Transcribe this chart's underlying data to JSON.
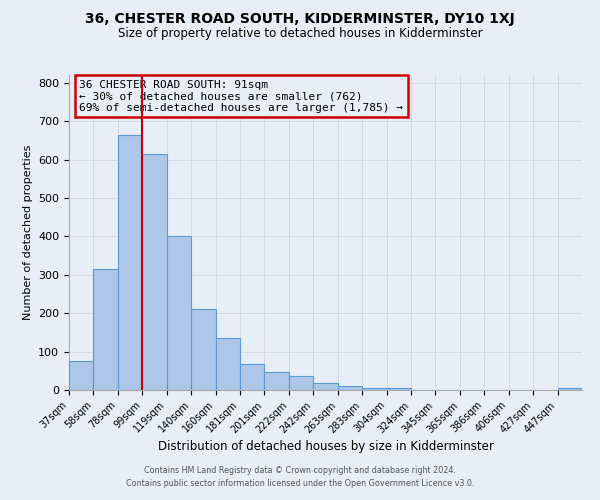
{
  "title": "36, CHESTER ROAD SOUTH, KIDDERMINSTER, DY10 1XJ",
  "subtitle": "Size of property relative to detached houses in Kidderminster",
  "xlabel": "Distribution of detached houses by size in Kidderminster",
  "ylabel": "Number of detached properties",
  "bin_labels": [
    "37sqm",
    "58sqm",
    "78sqm",
    "99sqm",
    "119sqm",
    "140sqm",
    "160sqm",
    "181sqm",
    "201sqm",
    "222sqm",
    "242sqm",
    "263sqm",
    "283sqm",
    "304sqm",
    "324sqm",
    "345sqm",
    "365sqm",
    "386sqm",
    "406sqm",
    "427sqm",
    "447sqm"
  ],
  "bar_heights": [
    75,
    315,
    665,
    615,
    400,
    210,
    135,
    68,
    47,
    37,
    18,
    10,
    5,
    5,
    1,
    0,
    0,
    0,
    0,
    0,
    5
  ],
  "bar_color": "#AEC6E8",
  "bar_edge_color": "#5B9BD5",
  "property_line_color": "#CC0000",
  "annotation_title": "36 CHESTER ROAD SOUTH: 91sqm",
  "annotation_line1": "← 30% of detached houses are smaller (762)",
  "annotation_line2": "69% of semi-detached houses are larger (1,785) →",
  "annotation_box_color": "#CC0000",
  "ylim": [
    0,
    820
  ],
  "yticks": [
    0,
    100,
    200,
    300,
    400,
    500,
    600,
    700,
    800
  ],
  "grid_color": "#D0D8E8",
  "background_color": "#E8EEF8",
  "footer_line1": "Contains HM Land Registry data © Crown copyright and database right 2024.",
  "footer_line2": "Contains public sector information licensed under the Open Government Licence v3.0."
}
